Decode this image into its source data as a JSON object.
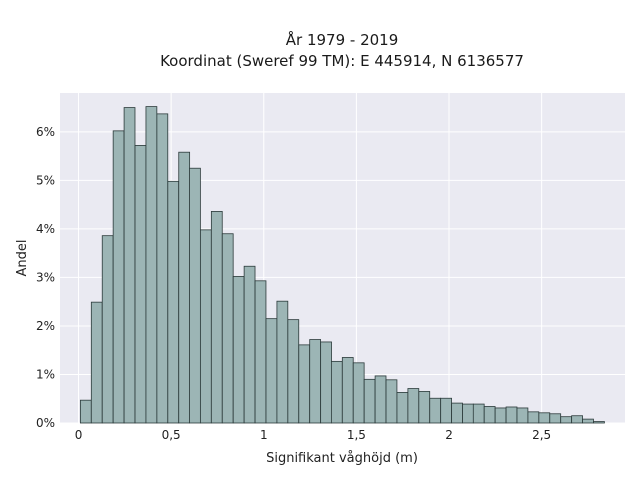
{
  "chart_data": {
    "type": "bar",
    "title": [
      "År 1979 - 2019",
      "Koordinat (Sweref 99 TM): E 445914, N 6136577"
    ],
    "xlabel": "Signifikant våghöjd (m)",
    "ylabel": "Andel",
    "xlim": [
      -0.1,
      2.95
    ],
    "ylim": [
      0,
      6.8
    ],
    "bin_width": 0.0588,
    "x_ticks": [
      {
        "value": 0,
        "label": "0"
      },
      {
        "value": 0.5,
        "label": "0,5"
      },
      {
        "value": 1,
        "label": "1"
      },
      {
        "value": 1.5,
        "label": "1,5"
      },
      {
        "value": 2,
        "label": "2"
      },
      {
        "value": 2.5,
        "label": "2,5"
      }
    ],
    "y_ticks": [
      {
        "value": 0,
        "label": "0%"
      },
      {
        "value": 1,
        "label": "1%"
      },
      {
        "value": 2,
        "label": "2%"
      },
      {
        "value": 3,
        "label": "3%"
      },
      {
        "value": 4,
        "label": "4%"
      },
      {
        "value": 5,
        "label": "5%"
      },
      {
        "value": 6,
        "label": "6%"
      }
    ],
    "bin_starts": [
      0.01,
      0.069,
      0.128,
      0.187,
      0.246,
      0.305,
      0.364,
      0.423,
      0.482,
      0.541,
      0.599,
      0.658,
      0.717,
      0.776,
      0.835,
      0.894,
      0.953,
      1.012,
      1.071,
      1.13,
      1.189,
      1.248,
      1.307,
      1.365,
      1.424,
      1.483,
      1.542,
      1.601,
      1.66,
      1.719,
      1.778,
      1.837,
      1.896,
      1.955,
      2.014,
      2.073,
      2.131,
      2.19,
      2.249,
      2.308,
      2.367,
      2.426,
      2.485,
      2.544,
      2.603,
      2.662,
      2.721,
      2.78
    ],
    "values": [
      0.47,
      2.49,
      3.86,
      6.02,
      6.5,
      5.72,
      6.52,
      6.37,
      4.98,
      5.58,
      5.25,
      3.98,
      4.36,
      3.9,
      3.02,
      3.23,
      2.93,
      2.15,
      2.51,
      2.13,
      1.61,
      1.72,
      1.67,
      1.27,
      1.35,
      1.24,
      0.9,
      0.97,
      0.89,
      0.63,
      0.71,
      0.65,
      0.51,
      0.51,
      0.41,
      0.39,
      0.39,
      0.34,
      0.31,
      0.33,
      0.31,
      0.23,
      0.21,
      0.19,
      0.13,
      0.15,
      0.08,
      0.03
    ],
    "grid": true,
    "bar_color": "#9cb5b5",
    "bar_edge_color": "#2b3a3a",
    "plot_background": "#eaeaf2",
    "grid_color": "#ffffff"
  }
}
